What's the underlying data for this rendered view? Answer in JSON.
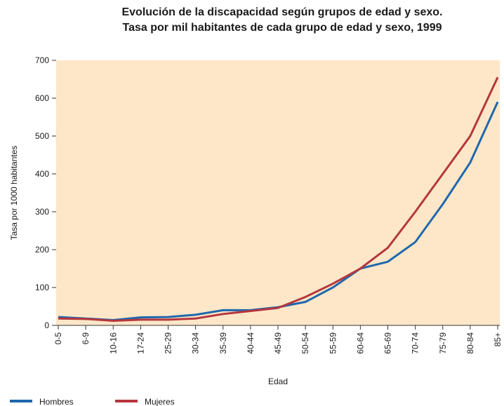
{
  "chart_data": {
    "type": "line",
    "title": [
      "Evolución de la discapacidad según grupos de edad y sexo.",
      "Tasa por mil habitantes de cada grupo de edad y sexo, 1999"
    ],
    "x_label": "Edad",
    "y_label": "Tasa por 1000 habitantes",
    "categories": [
      "0-5",
      "6-9",
      "10-16",
      "17-24",
      "25-29",
      "30-34",
      "35-39",
      "40-44",
      "45-49",
      "50-54",
      "55-59",
      "60-64",
      "65-69",
      "70-74",
      "75-79",
      "80-84",
      "85+"
    ],
    "series": [
      {
        "name": "Hombres",
        "color": "#1f67ad",
        "values": [
          22,
          18,
          14,
          21,
          22,
          28,
          40,
          40,
          48,
          62,
          100,
          150,
          168,
          220,
          320,
          430,
          590
        ]
      },
      {
        "name": "Mujeres",
        "color": "#b5373d",
        "values": [
          18,
          17,
          12,
          15,
          15,
          18,
          30,
          38,
          46,
          75,
          110,
          150,
          205,
          300,
          400,
          500,
          655
        ]
      }
    ],
    "ylim": [
      0,
      700
    ],
    "yticks": [
      0,
      100,
      200,
      300,
      400,
      500,
      600,
      700
    ],
    "background": "#fde7c8",
    "legend": "bottom-left"
  }
}
